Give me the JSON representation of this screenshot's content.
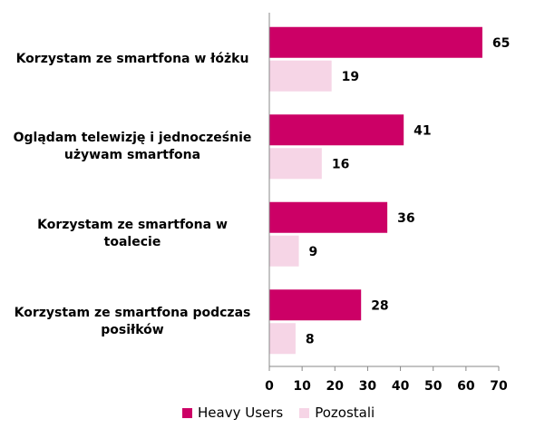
{
  "chart_data": {
    "type": "bar",
    "orientation": "horizontal",
    "categories": [
      "Korzystam ze smartfona w łóżku",
      "Oglądam telewizję i jednocześnie używam smartfona",
      "Korzystam ze smartfona w toalecie",
      "Korzystam ze smartfona podczas posiłków"
    ],
    "category_lines": [
      [
        "Korzystam ze smartfona w łóżku"
      ],
      [
        "Oglądam telewizję i jednocześnie",
        "używam smartfona"
      ],
      [
        "Korzystam ze smartfona w",
        "toalecie"
      ],
      [
        "Korzystam ze smartfona podczas",
        "posiłków"
      ]
    ],
    "series": [
      {
        "name": "Heavy Users",
        "color": "#cc0066",
        "values": [
          65,
          41,
          36,
          28
        ]
      },
      {
        "name": "Pozostali",
        "color": "#f6d5e6",
        "values": [
          19,
          16,
          9,
          8
        ]
      }
    ],
    "xlim": [
      0,
      70
    ],
    "xticks": [
      0,
      10,
      20,
      30,
      40,
      50,
      60,
      70
    ],
    "grid": false,
    "legend_position": "bottom"
  }
}
